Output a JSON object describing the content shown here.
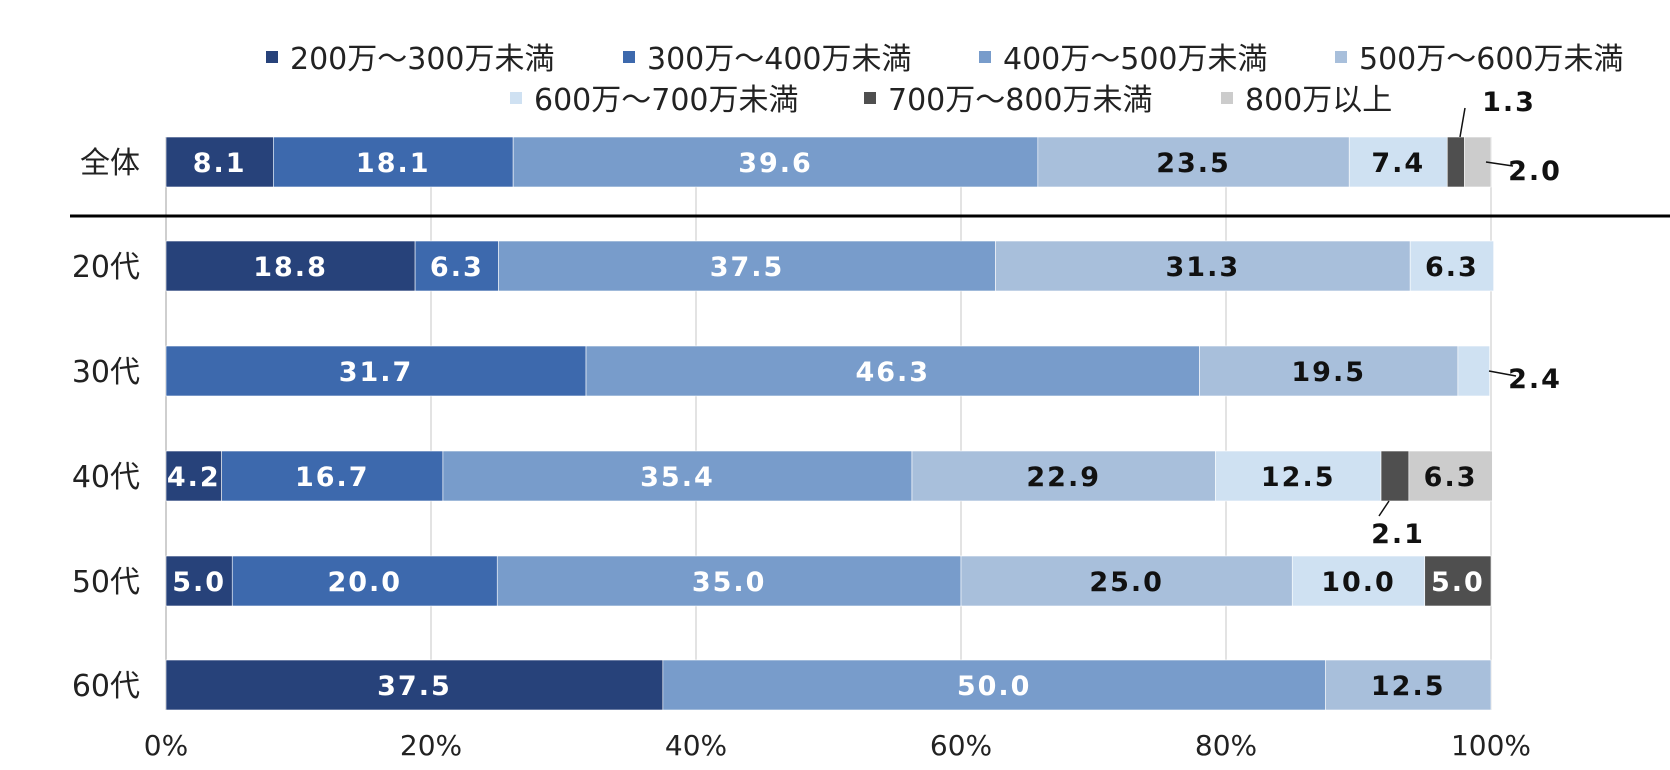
{
  "chart_data": {
    "type": "bar",
    "orientation": "horizontal",
    "stacked": true,
    "percent_axis": true,
    "xlim": [
      0,
      100
    ],
    "xticks": [
      0,
      20,
      40,
      60,
      80,
      100
    ],
    "xtick_labels": [
      "0%",
      "20%",
      "40%",
      "60%",
      "80%",
      "100%"
    ],
    "grid": true,
    "legend_position": "top",
    "categories": [
      "全体",
      "20代",
      "30代",
      "40代",
      "50代",
      "60代"
    ],
    "series": [
      {
        "name": "200万〜300万未満",
        "color": "#27427a",
        "label_color": "#ffffff",
        "values": [
          8.1,
          18.8,
          0,
          4.2,
          5.0,
          37.5
        ]
      },
      {
        "name": "300万〜400万未満",
        "color": "#3d69ad",
        "label_color": "#ffffff",
        "values": [
          18.1,
          6.3,
          31.7,
          16.7,
          20.0,
          0
        ]
      },
      {
        "name": "400万〜500万未満",
        "color": "#789ccb",
        "label_color": "#ffffff",
        "values": [
          39.6,
          37.5,
          46.3,
          35.4,
          35.0,
          50.0
        ]
      },
      {
        "name": "500万〜600万未満",
        "color": "#a8bfdb",
        "label_color": "#111111",
        "values": [
          23.5,
          31.3,
          19.5,
          22.9,
          25.0,
          12.5
        ]
      },
      {
        "name": "600万〜700万未満",
        "color": "#cfe1f2",
        "label_color": "#111111",
        "values": [
          7.4,
          6.3,
          2.4,
          12.5,
          10.0,
          0
        ]
      },
      {
        "name": "700万〜800万未満",
        "color": "#4f4f4f",
        "label_color": "#ffffff",
        "values": [
          1.3,
          0,
          0,
          2.1,
          5.0,
          0
        ]
      },
      {
        "name": "800万以上",
        "color": "#cccccc",
        "label_color": "#111111",
        "values": [
          2.0,
          0,
          0,
          6.3,
          0,
          0
        ]
      }
    ],
    "value_labels": [
      [
        "8.1",
        "18.1",
        "39.6",
        "23.5",
        "7.4",
        "1.3",
        "2.0"
      ],
      [
        "18.8",
        "6.3",
        "37.5",
        "31.3",
        "6.3",
        "",
        ""
      ],
      [
        "",
        "31.7",
        "46.3",
        "19.5",
        "2.4",
        "",
        ""
      ],
      [
        "4.2",
        "16.7",
        "35.4",
        "22.9",
        "12.5",
        "2.1",
        "6.3"
      ],
      [
        "5.0",
        "20.0",
        "35.0",
        "25.0",
        "10.0",
        "5.0",
        ""
      ],
      [
        "37.5",
        "",
        "50.0",
        "12.5",
        "",
        "",
        ""
      ]
    ]
  }
}
